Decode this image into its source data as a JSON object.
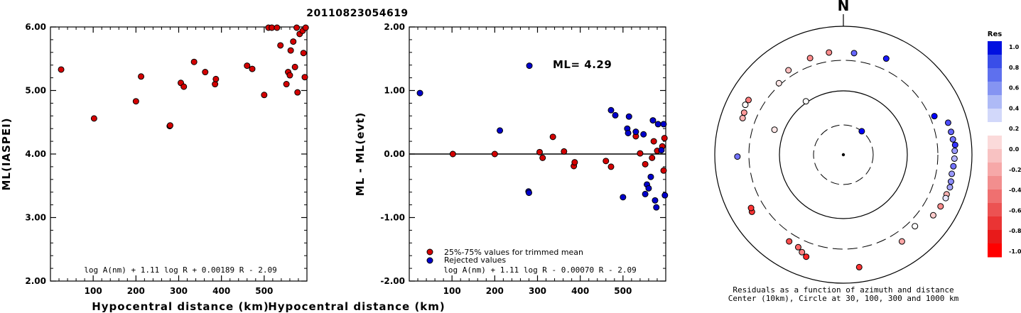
{
  "title": "20110823054619",
  "chart_data": [
    {
      "type": "scatter",
      "xlabel": "Hypocentral distance (km)",
      "ylabel": "ML(IASPEI)",
      "xlim": [
        0,
        600
      ],
      "ylim": [
        2,
        6
      ],
      "xticks": [
        100,
        200,
        300,
        400,
        500
      ],
      "yticks": [
        2,
        3,
        4,
        5,
        6
      ],
      "ytick_labels": [
        "2.00",
        "3.00",
        "4.00",
        "5.00",
        "6.00"
      ],
      "xtick_labels": [
        "100",
        "200",
        "300",
        "400",
        "500"
      ],
      "formula": "log A(nm) + 1.11 log R + 0.00189 R - 2.09",
      "point_color": "#d40000",
      "points": [
        [
          25,
          5.33
        ],
        [
          102,
          4.56
        ],
        [
          200,
          4.83
        ],
        [
          212,
          5.22
        ],
        [
          279,
          4.44
        ],
        [
          280,
          4.45
        ],
        [
          305,
          5.12
        ],
        [
          312,
          5.06
        ],
        [
          336,
          5.45
        ],
        [
          362,
          5.29
        ],
        [
          385,
          5.1
        ],
        [
          387,
          5.18
        ],
        [
          460,
          5.39
        ],
        [
          472,
          5.34
        ],
        [
          500,
          4.93
        ],
        [
          510,
          5.99
        ],
        [
          518,
          5.99
        ],
        [
          530,
          5.99
        ],
        [
          538,
          5.71
        ],
        [
          552,
          5.1
        ],
        [
          556,
          5.29
        ],
        [
          560,
          5.24
        ],
        [
          562,
          5.63
        ],
        [
          568,
          5.77
        ],
        [
          572,
          5.37
        ],
        [
          576,
          6.02
        ],
        [
          578,
          4.97
        ],
        [
          583,
          5.89
        ],
        [
          590,
          5.94
        ],
        [
          592,
          5.59
        ],
        [
          595,
          5.21
        ],
        [
          597,
          5.99
        ]
      ]
    },
    {
      "type": "scatter",
      "xlabel": "Hypocentral distance (km)",
      "ylabel": "ML - ML(evt)",
      "xlim": [
        0,
        600
      ],
      "ylim": [
        -2,
        2
      ],
      "xticks": [
        100,
        200,
        300,
        400,
        500
      ],
      "yticks": [
        -2,
        -1,
        0,
        1,
        2
      ],
      "ytick_labels": [
        "-2.00",
        "-1.00",
        "0.00",
        "1.00",
        "2.00"
      ],
      "xtick_labels": [
        "100",
        "200",
        "300",
        "400",
        "500"
      ],
      "annotation": "ML= 4.29",
      "formula": "log A(nm) + 1.11 log R - 0.00070 R - 2.09",
      "legend": [
        {
          "label": "25%-75% values for trimmed mean",
          "color": "#d40000"
        },
        {
          "label": "Rejected values",
          "color": "#0000cc"
        }
      ],
      "series": [
        {
          "name": "25%-75% values for trimmed mean",
          "color": "#d40000",
          "points": [
            [
              102,
              0.0
            ],
            [
              200,
              0.0
            ],
            [
              305,
              0.03
            ],
            [
              312,
              -0.06
            ],
            [
              336,
              0.27
            ],
            [
              362,
              0.04
            ],
            [
              385,
              -0.19
            ],
            [
              387,
              -0.13
            ],
            [
              460,
              -0.11
            ],
            [
              472,
              -0.2
            ],
            [
              530,
              0.28
            ],
            [
              540,
              0.01
            ],
            [
              552,
              -0.16
            ],
            [
              568,
              -0.06
            ],
            [
              572,
              0.2
            ],
            [
              580,
              0.05
            ],
            [
              592,
              0.12
            ],
            [
              595,
              -0.26
            ],
            [
              597,
              0.25
            ]
          ]
        },
        {
          "name": "Rejected values",
          "color": "#0000cc",
          "points": [
            [
              25,
              0.96
            ],
            [
              212,
              0.37
            ],
            [
              279,
              -0.59
            ],
            [
              280,
              -0.61
            ],
            [
              281,
              1.39
            ],
            [
              472,
              0.69
            ],
            [
              482,
              0.61
            ],
            [
              500,
              -0.68
            ],
            [
              510,
              0.4
            ],
            [
              512,
              0.33
            ],
            [
              514,
              0.59
            ],
            [
              530,
              0.35
            ],
            [
              548,
              0.31
            ],
            [
              552,
              -0.63
            ],
            [
              556,
              -0.48
            ],
            [
              560,
              -0.54
            ],
            [
              565,
              -0.36
            ],
            [
              570,
              0.53
            ],
            [
              575,
              -0.73
            ],
            [
              578,
              -0.84
            ],
            [
              582,
              0.47
            ],
            [
              590,
              0.06
            ],
            [
              595,
              0.47
            ],
            [
              598,
              -0.65
            ]
          ]
        }
      ]
    }
  ],
  "polar": {
    "north_label": "N",
    "caption_line1": "Residuals as a function of azimuth and distance",
    "caption_line2": "Center (10km), Circle at 30, 100, 300 and 1000 km",
    "points": [
      {
        "az": 38,
        "dist": 30,
        "res": 1.0
      },
      {
        "az": 325,
        "dist": 105,
        "res": 0.0
      },
      {
        "az": 290,
        "dist": 140,
        "res": -0.1
      },
      {
        "az": 269,
        "dist": 450,
        "res": 0.55
      },
      {
        "az": 290,
        "dist": 470,
        "res": -0.3
      },
      {
        "az": 293,
        "dist": 480,
        "res": -0.4
      },
      {
        "az": 318,
        "dist": 320,
        "res": -0.1
      },
      {
        "az": 327,
        "dist": 375,
        "res": -0.25
      },
      {
        "az": 341,
        "dist": 395,
        "res": -0.45
      },
      {
        "az": 352,
        "dist": 410,
        "res": -0.45
      },
      {
        "az": 6,
        "dist": 395,
        "res": 0.6
      },
      {
        "az": 24,
        "dist": 440,
        "res": 0.9
      },
      {
        "az": 67,
        "dist": 350,
        "res": 1.0
      },
      {
        "az": 73,
        "dist": 510,
        "res": 0.7
      },
      {
        "az": 78,
        "dist": 520,
        "res": 0.6
      },
      {
        "az": 82,
        "dist": 530,
        "res": 0.55
      },
      {
        "az": 85,
        "dist": 560,
        "res": 0.8
      },
      {
        "az": 88,
        "dist": 545,
        "res": 0.4
      },
      {
        "az": 92,
        "dist": 540,
        "res": 0.3
      },
      {
        "az": 96,
        "dist": 530,
        "res": 0.55
      },
      {
        "az": 100,
        "dist": 520,
        "res": 0.4
      },
      {
        "az": 104,
        "dist": 535,
        "res": 0.45
      },
      {
        "az": 107,
        "dist": 545,
        "res": 0.35
      },
      {
        "az": 111,
        "dist": 530,
        "res": -0.3
      },
      {
        "az": 113,
        "dist": 540,
        "res": 0.1
      },
      {
        "az": 118,
        "dist": 520,
        "res": -0.45
      },
      {
        "az": 124,
        "dist": 490,
        "res": -0.2
      },
      {
        "az": 135,
        "dist": 380,
        "res": 0.0
      },
      {
        "az": 146,
        "dist": 430,
        "res": -0.35
      },
      {
        "az": 172,
        "dist": 590,
        "res": -0.8
      },
      {
        "az": 200,
        "dist": 495,
        "res": -0.85
      },
      {
        "az": 203,
        "dist": 450,
        "res": -0.5
      },
      {
        "az": 206,
        "dist": 405,
        "res": -0.6
      },
      {
        "az": 212,
        "dist": 395,
        "res": -0.7
      },
      {
        "az": 238,
        "dist": 480,
        "res": -0.8
      },
      {
        "az": 240,
        "dist": 460,
        "res": -0.8
      },
      {
        "az": 297,
        "dist": 520,
        "res": 0.0
      },
      {
        "az": 300,
        "dist": 510,
        "res": -0.5
      }
    ]
  },
  "colorbar": {
    "title": "Res",
    "ticks": [
      "1.0",
      "0.8",
      "0.6",
      "0.4",
      "0.2",
      "0.0",
      "-0.2",
      "-0.4",
      "-0.6",
      "-0.8",
      "-1.0"
    ],
    "colors": [
      "#0010e0",
      "#3a4ee8",
      "#5e70ee",
      "#8594f2",
      "#aebaf6",
      "#d2d8fa",
      "#ffffff",
      "#fbdada",
      "#f8c2c2",
      "#f6a8a8",
      "#f28e8e",
      "#ef7070",
      "#ec5252",
      "#ea3434",
      "#e81a1a",
      "#ff0000"
    ]
  }
}
